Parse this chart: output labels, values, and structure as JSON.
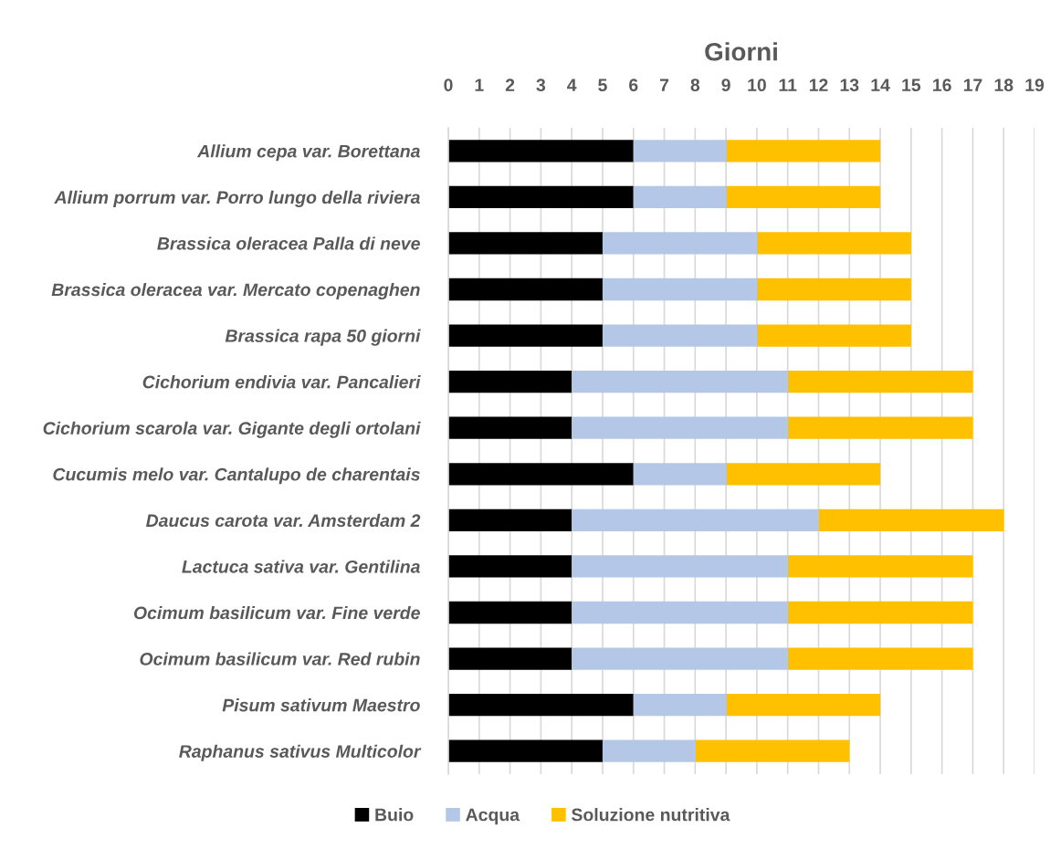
{
  "chart_data": {
    "type": "bar",
    "orientation": "horizontal",
    "stacked": true,
    "xlabel": "Giorni",
    "categories": [
      "Allium cepa var. Borettana",
      "Allium porrum var. Porro lungo della riviera",
      "Brassica oleracea Palla di neve",
      "Brassica oleracea var. Mercato copenaghen",
      "Brassica rapa 50 giorni",
      "Cichorium endivia var. Pancalieri",
      "Cichorium scarola var. Gigante degli ortolani",
      "Cucumis melo var. Cantalupo de charentais",
      "Daucus carota var. Amsterdam 2",
      "Lactuca sativa var. Gentilina",
      "Ocimum basilicum var. Fine verde",
      "Ocimum basilicum var. Red rubin",
      "Pisum sativum Maestro",
      "Raphanus sativus Multicolor"
    ],
    "series": [
      {
        "name": "Buio",
        "color": "#000000",
        "values": [
          6,
          6,
          5,
          5,
          5,
          4,
          4,
          6,
          4,
          4,
          4,
          4,
          6,
          5
        ]
      },
      {
        "name": "Acqua",
        "color": "#b4c7e7",
        "values": [
          3,
          3,
          5,
          5,
          5,
          7,
          7,
          3,
          8,
          7,
          7,
          7,
          3,
          3
        ]
      },
      {
        "name": "Soluzione nutritiva",
        "color": "#ffc000",
        "values": [
          5,
          5,
          5,
          5,
          5,
          6,
          6,
          5,
          6,
          6,
          6,
          6,
          5,
          5
        ]
      }
    ],
    "xlim": [
      0,
      19
    ],
    "xticks": [
      0,
      1,
      2,
      3,
      4,
      5,
      6,
      7,
      8,
      9,
      10,
      11,
      12,
      13,
      14,
      15,
      16,
      17,
      18,
      19
    ],
    "grid": "x",
    "legend": "bottom"
  }
}
